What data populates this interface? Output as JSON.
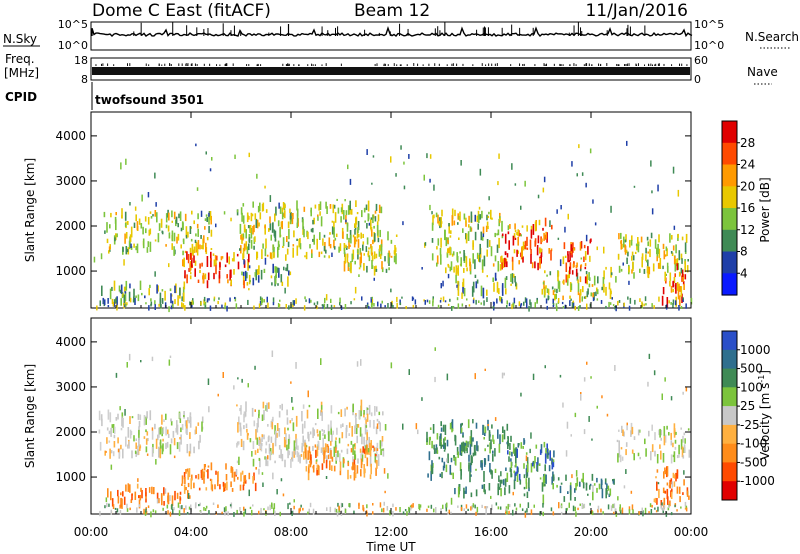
{
  "header": {
    "station": "Dome C East (fitACF)",
    "beam": "Beam 12",
    "date": "11/Jan/2016"
  },
  "noise_panel": {
    "label": "N.Sky",
    "y_top_label": "10^5",
    "y_bottom_label": "10^0",
    "right_top_label": "10^5",
    "right_bottom_label": "10^0",
    "right_title": "N.Search"
  },
  "freq_panel": {
    "label_line1": "Freq.",
    "label_line2": "[MHz]",
    "left_top_tick": "18",
    "left_bottom_tick": "8",
    "right_top_tick": "60",
    "right_bottom_tick": "0",
    "right_title": "Nave"
  },
  "cpid_panel": {
    "label": "CPID",
    "program": "twofsound 3501"
  },
  "x_axis": {
    "title": "Time UT",
    "ticks": [
      "00:00",
      "04:00",
      "08:00",
      "12:00",
      "16:00",
      "20:00",
      "00:00"
    ]
  },
  "chart_data": [
    {
      "type": "heatmap",
      "panel": "power",
      "ylabel": "Slant Range [km]",
      "yticks": [
        "4000",
        "3000",
        "2000",
        "1000"
      ],
      "ylim": [
        180,
        4530
      ],
      "xlim_hours": [
        0,
        24
      ],
      "colorbar": {
        "title": "Power [dB]",
        "labels": [
          "28",
          "24",
          "20",
          "16",
          "12",
          "8",
          "4"
        ],
        "colors": [
          "#e00000",
          "#ff4a00",
          "#ff9a00",
          "#e8c800",
          "#7cc43c",
          "#3f8a55",
          "#1f3fa8",
          "#0a1aff"
        ]
      },
      "echo_regions": [
        {
          "t0": 0.3,
          "t1": 3.8,
          "r0": 300,
          "r1": 700,
          "level": "low"
        },
        {
          "t0": 0.5,
          "t1": 4.8,
          "r0": 1400,
          "r1": 2300,
          "level": "mid"
        },
        {
          "t0": 3.6,
          "t1": 6.4,
          "r0": 700,
          "r1": 1400,
          "level": "high"
        },
        {
          "t0": 5.8,
          "t1": 11.6,
          "r0": 1300,
          "r1": 2500,
          "level": "mid"
        },
        {
          "t0": 6.0,
          "t1": 8.0,
          "r0": 700,
          "r1": 1100,
          "level": "low"
        },
        {
          "t0": 10.0,
          "t1": 12.2,
          "r0": 1000,
          "r1": 1800,
          "level": "mid"
        },
        {
          "t0": 13.6,
          "t1": 16.5,
          "r0": 1000,
          "r1": 2300,
          "level": "mid"
        },
        {
          "t0": 14.5,
          "t1": 17.0,
          "r0": 500,
          "r1": 900,
          "level": "low"
        },
        {
          "t0": 16.4,
          "t1": 18.5,
          "r0": 1100,
          "r1": 2100,
          "level": "high"
        },
        {
          "t0": 18.0,
          "t1": 21.0,
          "r0": 400,
          "r1": 1000,
          "level": "mid"
        },
        {
          "t0": 18.8,
          "t1": 20.0,
          "r0": 700,
          "r1": 1700,
          "level": "high"
        },
        {
          "t0": 21.0,
          "t1": 23.9,
          "r0": 900,
          "r1": 1800,
          "level": "mid"
        },
        {
          "t0": 22.8,
          "t1": 23.9,
          "r0": 300,
          "r1": 1100,
          "level": "high"
        }
      ]
    },
    {
      "type": "heatmap",
      "panel": "velocity",
      "ylabel": "Slant Range [km]",
      "yticks": [
        "4000",
        "3000",
        "2000",
        "1000"
      ],
      "ylim": [
        180,
        4530
      ],
      "xlim_hours": [
        0,
        24
      ],
      "colorbar": {
        "title": "Velocity [m s^-1]",
        "labels": [
          "1000",
          "500",
          "100",
          "25",
          "-25",
          "-100",
          "-500",
          "-1000"
        ],
        "colors": [
          "#2a4fc8",
          "#2f6f8e",
          "#3f8a55",
          "#7cc43c",
          "#c8c8c8",
          "#ffb040",
          "#ff8c1a",
          "#ff4a00",
          "#e00000"
        ]
      },
      "echo_regions": [
        {
          "t0": 0.3,
          "t1": 4.5,
          "r0": 1500,
          "r1": 2400,
          "level": "zero"
        },
        {
          "t0": 0.5,
          "t1": 4.0,
          "r0": 400,
          "r1": 800,
          "level": "neg"
        },
        {
          "t0": 3.6,
          "t1": 6.6,
          "r0": 700,
          "r1": 1300,
          "level": "neg"
        },
        {
          "t0": 5.8,
          "t1": 11.8,
          "r0": 1300,
          "r1": 2600,
          "level": "zero"
        },
        {
          "t0": 8.5,
          "t1": 11.5,
          "r0": 1000,
          "r1": 1700,
          "level": "neg"
        },
        {
          "t0": 13.4,
          "t1": 17.0,
          "r0": 1000,
          "r1": 2200,
          "level": "pos"
        },
        {
          "t0": 14.5,
          "t1": 17.5,
          "r0": 600,
          "r1": 900,
          "level": "pos"
        },
        {
          "t0": 16.5,
          "t1": 18.5,
          "r0": 900,
          "r1": 1800,
          "level": "fast"
        },
        {
          "t0": 18.0,
          "t1": 21.0,
          "r0": 500,
          "r1": 1000,
          "level": "pos"
        },
        {
          "t0": 21.0,
          "t1": 23.9,
          "r0": 1400,
          "r1": 2100,
          "level": "zero"
        },
        {
          "t0": 22.5,
          "t1": 23.9,
          "r0": 300,
          "r1": 1200,
          "level": "neg"
        }
      ]
    }
  ]
}
